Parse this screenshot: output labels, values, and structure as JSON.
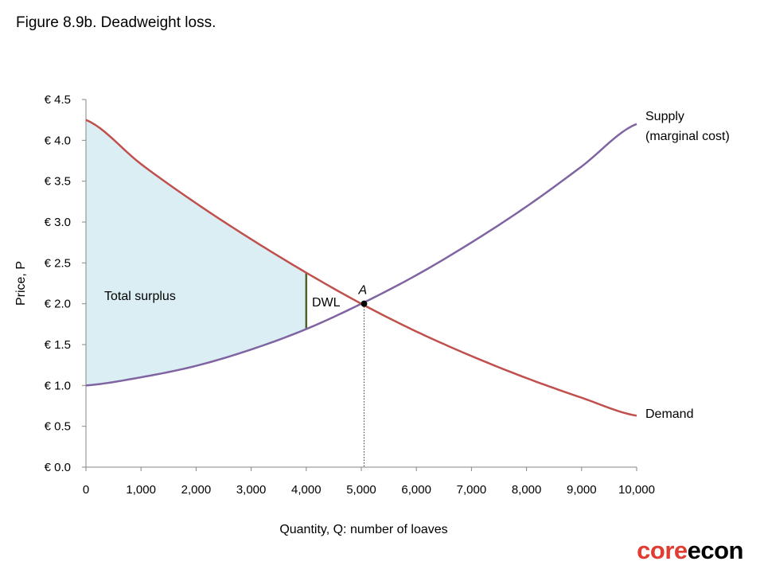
{
  "figure_title": "Figure 8.9b. Deadweight loss.",
  "logo": {
    "part1": "core",
    "part2": "econ"
  },
  "colors": {
    "supply": "#8064a2",
    "demand": "#c0504d",
    "surplus_fill": "#daeef3",
    "dwl_line": "#4f6228",
    "axis": "#868686"
  },
  "chart_data": {
    "type": "line",
    "xlabel": "Quantity, Q: number of loaves",
    "ylabel": "Price, P",
    "xlim": [
      0,
      10000
    ],
    "ylim": [
      0,
      4.5
    ],
    "x_ticks": [
      0,
      1000,
      2000,
      3000,
      4000,
      5000,
      6000,
      7000,
      8000,
      9000,
      10000
    ],
    "x_tick_labels": [
      "0",
      "1,000",
      "2,000",
      "3,000",
      "4,000",
      "5,000",
      "6,000",
      "7,000",
      "8,000",
      "9,000",
      "10,000"
    ],
    "y_ticks": [
      0,
      0.5,
      1.0,
      1.5,
      2.0,
      2.5,
      3.0,
      3.5,
      4.0,
      4.5
    ],
    "y_tick_labels": [
      "€ 0.0",
      "€ 0.5",
      "€ 1.0",
      "€ 1.5",
      "€ 2.0",
      "€ 2.5",
      "€ 3.0",
      "€ 3.5",
      "€ 4.0",
      "€ 4.5"
    ],
    "series": [
      {
        "name": "Supply (marginal cost)",
        "label_lines": [
          "Supply",
          "(marginal cost)"
        ],
        "x": [
          0,
          1000,
          2000,
          3000,
          4000,
          5000,
          6000,
          7000,
          8000,
          9000,
          10000
        ],
        "y": [
          1.0,
          1.1,
          1.24,
          1.44,
          1.69,
          2.0,
          2.35,
          2.75,
          3.19,
          3.68,
          4.2
        ]
      },
      {
        "name": "Demand",
        "label_lines": [
          "Demand"
        ],
        "x": [
          0,
          1000,
          2000,
          3000,
          4000,
          5000,
          6000,
          7000,
          8000,
          9000,
          10000
        ],
        "y": [
          4.25,
          3.71,
          3.23,
          2.79,
          2.38,
          2.0,
          1.66,
          1.36,
          1.09,
          0.85,
          0.63
        ]
      }
    ],
    "restricted_quantity": 4000,
    "equilibrium": {
      "label": "A",
      "x": 5050,
      "y": 2.0
    },
    "annotations": {
      "surplus": "Total surplus",
      "dwl": "DWL"
    }
  }
}
